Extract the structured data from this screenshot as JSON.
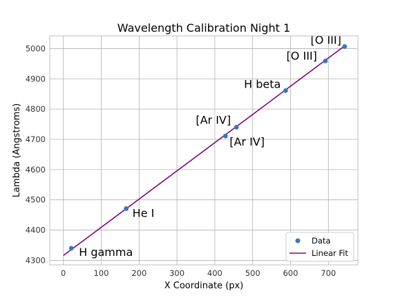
{
  "chart_data": {
    "type": "scatter",
    "title": "Wavelength Calibration Night 1",
    "xlabel": "X Coordinate (px)",
    "ylabel": "Lambda (Angstroms)",
    "xlim": [
      -36,
      778
    ],
    "ylim": [
      4285,
      5042
    ],
    "xticks": [
      0,
      100,
      200,
      300,
      400,
      500,
      600,
      700
    ],
    "yticks": [
      4300,
      4400,
      4500,
      4600,
      4700,
      4800,
      4900,
      5000
    ],
    "grid": true,
    "legend_position": "bottom-right",
    "series": [
      {
        "name": "Data",
        "type": "scatter",
        "color": "#3a78b4",
        "points": [
          {
            "x": 21,
            "y": 4340,
            "label": "H gamma"
          },
          {
            "x": 166,
            "y": 4471,
            "label": "He I"
          },
          {
            "x": 428,
            "y": 4711,
            "label": "[Ar IV]"
          },
          {
            "x": 457,
            "y": 4740,
            "label": "[Ar IV]"
          },
          {
            "x": 587,
            "y": 4861,
            "label": "H beta"
          },
          {
            "x": 692,
            "y": 4959,
            "label": "[O III]"
          },
          {
            "x": 743,
            "y": 5007,
            "label": "[O III]"
          }
        ]
      },
      {
        "name": "Linear Fit",
        "type": "line",
        "color": "#800080",
        "x": [
          0,
          743
        ],
        "y": [
          4316,
          5009
        ]
      }
    ]
  }
}
